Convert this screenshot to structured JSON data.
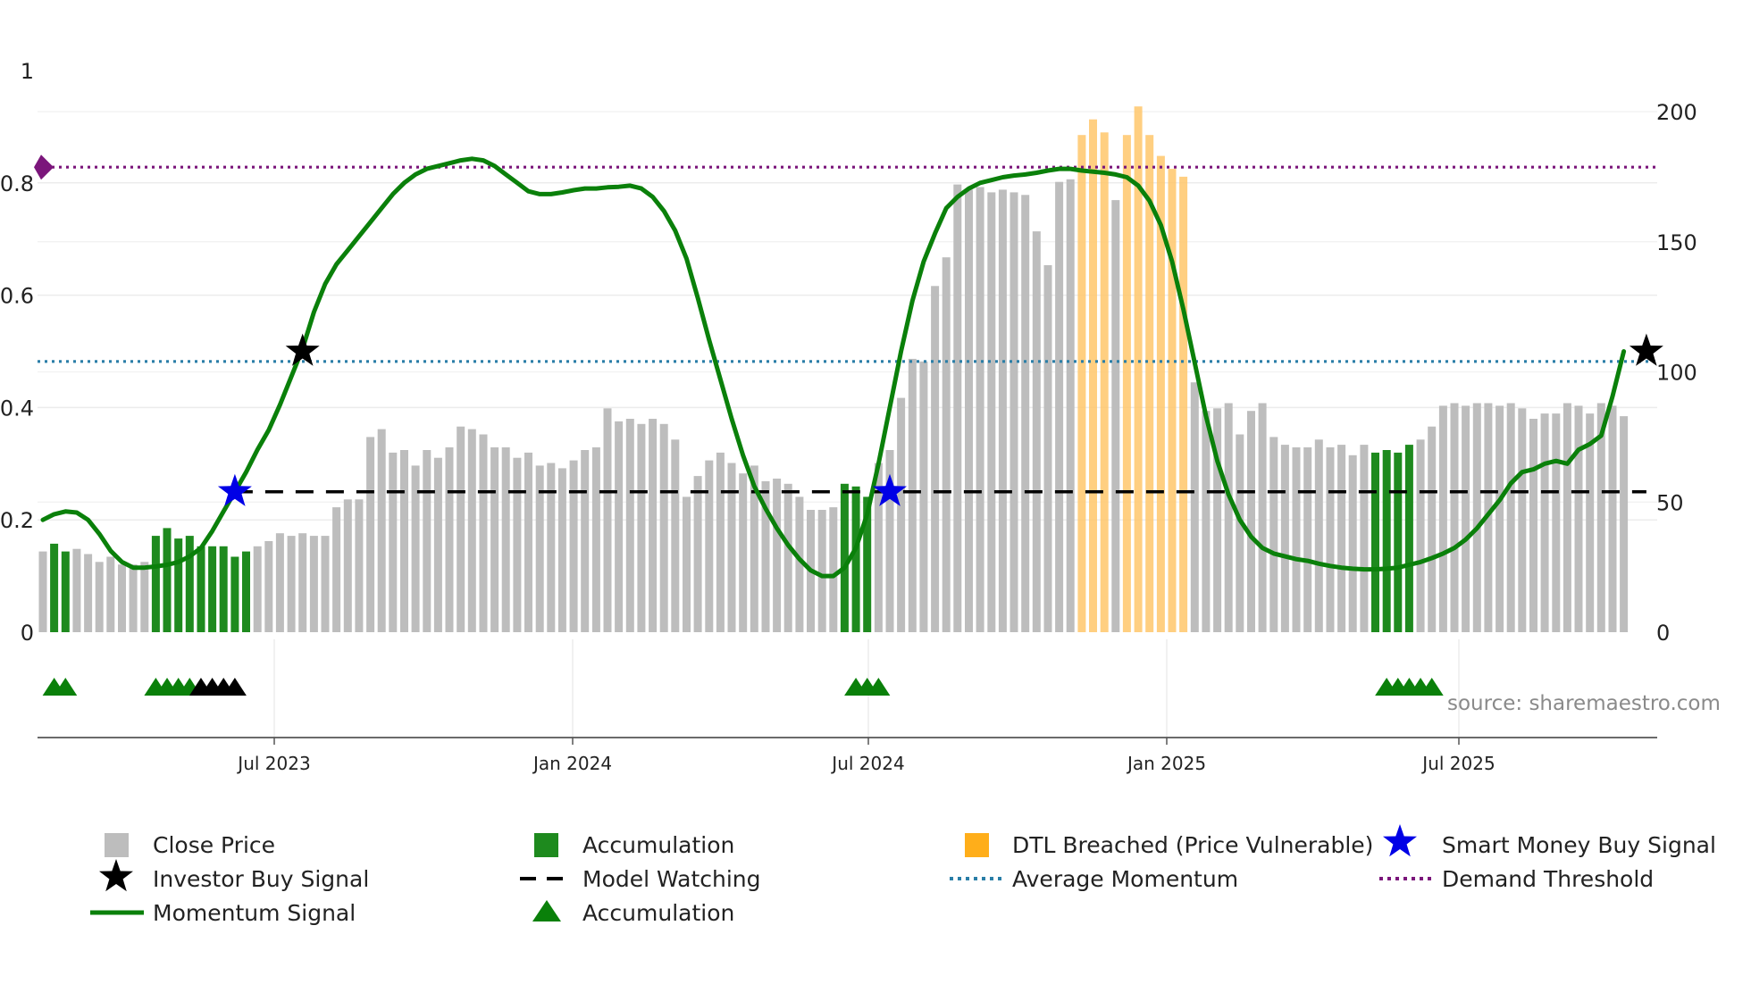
{
  "chart_data": {
    "type": "bar+line",
    "colors": {
      "close": "#bdbdbd",
      "accumulation": "#1e8a1e",
      "dtl": "#ffc76b",
      "momentum": "#0a800a",
      "average": "#2a7ea7",
      "demand": "#7b167b",
      "watching": "#000000",
      "smart_star": "#0000e6",
      "investor_star": "#000000"
    },
    "left_axis": {
      "min": 0,
      "max": 1,
      "ticks": [
        "0",
        "0.2",
        "0.4",
        "0.6",
        "0.8",
        "1"
      ]
    },
    "right_axis": {
      "min": 0,
      "max": 200,
      "ticks": [
        "0",
        "50",
        "100",
        "150",
        "200"
      ]
    },
    "x_axis": {
      "ticks": [
        "Jul 2023",
        "Jan 2024",
        "Jul 2024",
        "Jan 2025",
        "Jul 2025"
      ]
    },
    "close_prices": [
      31,
      34,
      31,
      32,
      30,
      27,
      29,
      26,
      26,
      27,
      37,
      40,
      36,
      37,
      33,
      33,
      33,
      29,
      31,
      33,
      35,
      38,
      37,
      38,
      37,
      37,
      48,
      51,
      51,
      75,
      78,
      69,
      70,
      64,
      70,
      67,
      71,
      79,
      78,
      76,
      71,
      71,
      67,
      69,
      64,
      65,
      63,
      66,
      70,
      71,
      86,
      81,
      82,
      80,
      82,
      80,
      74,
      52,
      60,
      66,
      69,
      65,
      61,
      64,
      58,
      59,
      57,
      52,
      47,
      47,
      48,
      57,
      56,
      52,
      65,
      70,
      90,
      105,
      104,
      133,
      144,
      172,
      170,
      171,
      169,
      170,
      169,
      168,
      154,
      141,
      173,
      174,
      191,
      197,
      192,
      166,
      191,
      202,
      191,
      183,
      178,
      175,
      96,
      85,
      86,
      88,
      76,
      85,
      88,
      75,
      72,
      71,
      71,
      74,
      71,
      72,
      68,
      72,
      69,
      70,
      69,
      72,
      74,
      79,
      87,
      88,
      87,
      88,
      88,
      87,
      88,
      86,
      82,
      84,
      84,
      88,
      87,
      84,
      88,
      87,
      83
    ],
    "accumulation_bars": [
      1,
      2,
      10,
      11,
      12,
      13,
      14,
      15,
      16,
      17,
      18,
      71,
      72,
      73,
      118,
      119,
      120,
      121
    ],
    "dtl_bars": [
      92,
      93,
      94,
      96,
      97,
      98,
      99,
      100,
      101
    ],
    "momentum": [
      0.2,
      0.21,
      0.215,
      0.213,
      0.2,
      0.175,
      0.145,
      0.125,
      0.115,
      0.115,
      0.117,
      0.12,
      0.125,
      0.135,
      0.15,
      0.18,
      0.215,
      0.25,
      0.285,
      0.325,
      0.36,
      0.405,
      0.455,
      0.505,
      0.57,
      0.62,
      0.655,
      0.68,
      0.705,
      0.73,
      0.755,
      0.78,
      0.8,
      0.815,
      0.825,
      0.83,
      0.835,
      0.84,
      0.843,
      0.84,
      0.83,
      0.815,
      0.8,
      0.785,
      0.78,
      0.78,
      0.783,
      0.787,
      0.79,
      0.79,
      0.792,
      0.793,
      0.795,
      0.79,
      0.775,
      0.75,
      0.715,
      0.665,
      0.595,
      0.52,
      0.45,
      0.38,
      0.315,
      0.26,
      0.22,
      0.185,
      0.155,
      0.13,
      0.11,
      0.1,
      0.1,
      0.115,
      0.15,
      0.21,
      0.3,
      0.4,
      0.5,
      0.59,
      0.66,
      0.71,
      0.755,
      0.775,
      0.79,
      0.8,
      0.805,
      0.81,
      0.813,
      0.815,
      0.818,
      0.822,
      0.825,
      0.825,
      0.822,
      0.82,
      0.818,
      0.815,
      0.81,
      0.795,
      0.768,
      0.725,
      0.66,
      0.575,
      0.48,
      0.385,
      0.305,
      0.245,
      0.2,
      0.17,
      0.15,
      0.14,
      0.135,
      0.13,
      0.127,
      0.122,
      0.118,
      0.115,
      0.113,
      0.112,
      0.112,
      0.113,
      0.115,
      0.12,
      0.125,
      0.132,
      0.14,
      0.15,
      0.165,
      0.185,
      0.21,
      0.235,
      0.265,
      0.285,
      0.29,
      0.3,
      0.305,
      0.3,
      0.325,
      0.335,
      0.35,
      0.42,
      0.5
    ],
    "model_watching": {
      "value": 0.25,
      "from_index": 17,
      "to_index": 142
    },
    "average_momentum": 0.482,
    "demand_threshold": 0.828,
    "smart_money_signals": [
      {
        "index": 17,
        "value": 0.25
      },
      {
        "index": 75,
        "value": 0.25
      }
    ],
    "investor_signals": [
      {
        "index": 23,
        "value": 0.5
      },
      {
        "index": 142,
        "value": 0.5
      }
    ],
    "accumulation_markers": [
      {
        "index": 1,
        "color": "#0a800a"
      },
      {
        "index": 2,
        "color": "#0a800a"
      },
      {
        "index": 10,
        "color": "#0a800a"
      },
      {
        "index": 11,
        "color": "#0a800a"
      },
      {
        "index": 12,
        "color": "#0a800a"
      },
      {
        "index": 13,
        "color": "#0a800a"
      },
      {
        "index": 14,
        "color": "#000000"
      },
      {
        "index": 15,
        "color": "#000000"
      },
      {
        "index": 16,
        "color": "#000000"
      },
      {
        "index": 17,
        "color": "#000000"
      },
      {
        "index": 72,
        "color": "#0a800a"
      },
      {
        "index": 73,
        "color": "#0a800a"
      },
      {
        "index": 74,
        "color": "#0a800a"
      },
      {
        "index": 119,
        "color": "#0a800a"
      },
      {
        "index": 120,
        "color": "#0a800a"
      },
      {
        "index": 121,
        "color": "#0a800a"
      },
      {
        "index": 122,
        "color": "#0a800a"
      },
      {
        "index": 123,
        "color": "#0a800a"
      }
    ]
  },
  "source": "source: sharemaestro.com",
  "legend": {
    "close_price": "Close Price",
    "accumulation": "Accumulation",
    "dtl_breached": "DTL Breached (Price Vulnerable)",
    "smart_money": "Smart Money Buy Signal",
    "investor_buy": "Investor Buy Signal",
    "model_watching": "Model Watching",
    "average_momentum": "Average Momentum",
    "demand_threshold": "Demand Threshold",
    "momentum_signal": "Momentum Signal",
    "accumulation_marker": "Accumulation"
  }
}
